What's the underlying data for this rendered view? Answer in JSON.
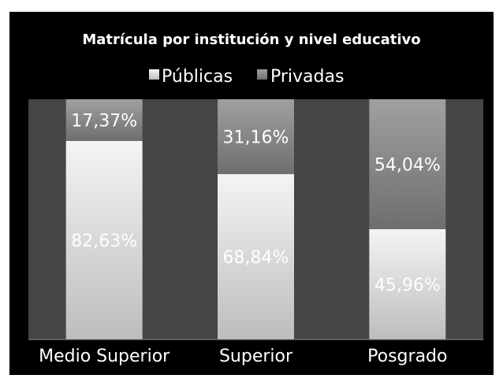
{
  "chart_data": {
    "type": "bar",
    "stacked": true,
    "percent_stacked": true,
    "title": "Matrícula por institución y nivel educativo",
    "categories": [
      "Medio Superior",
      "Superior",
      "Posgrado"
    ],
    "series": [
      {
        "name": "Públicas",
        "values": [
          82.63,
          68.84,
          45.96
        ],
        "labels": [
          "82,63%",
          "68,84%",
          "45,96%"
        ],
        "color": "#e6e6e6"
      },
      {
        "name": "Privadas",
        "values": [
          17.37,
          31.16,
          54.04
        ],
        "labels": [
          "17,37%",
          "31,16%",
          "54,04%"
        ],
        "color": "#8c8c8c"
      }
    ],
    "ylim": [
      0,
      100
    ],
    "legend": "top",
    "background": "#000000",
    "plot_background": "#454545"
  }
}
